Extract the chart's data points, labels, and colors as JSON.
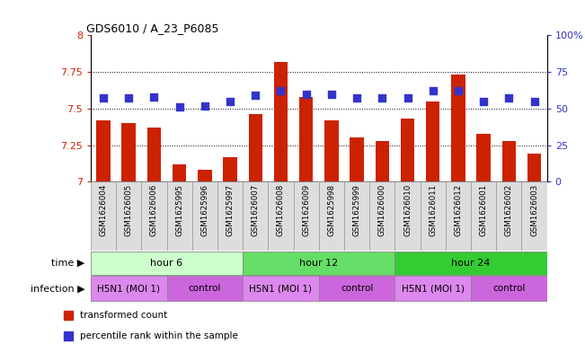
{
  "title": "GDS6010 / A_23_P6085",
  "samples": [
    "GSM1626004",
    "GSM1626005",
    "GSM1626006",
    "GSM1625995",
    "GSM1625996",
    "GSM1625997",
    "GSM1626007",
    "GSM1626008",
    "GSM1626009",
    "GSM1625998",
    "GSM1625999",
    "GSM1626000",
    "GSM1626010",
    "GSM1626011",
    "GSM1626012",
    "GSM1626001",
    "GSM1626002",
    "GSM1626003"
  ],
  "bar_values": [
    7.42,
    7.4,
    7.37,
    7.12,
    7.08,
    7.17,
    7.46,
    7.82,
    7.58,
    7.42,
    7.3,
    7.28,
    7.43,
    7.55,
    7.73,
    7.33,
    7.28,
    7.19
  ],
  "dot_values": [
    57,
    57,
    58,
    51,
    52,
    55,
    59,
    62,
    60,
    60,
    57,
    57,
    57,
    62,
    62,
    55,
    57,
    55
  ],
  "bar_color": "#cc2200",
  "dot_color": "#3333cc",
  "ylim_left": [
    7.0,
    8.0
  ],
  "ylim_right": [
    0,
    100
  ],
  "yticks_left": [
    7.0,
    7.25,
    7.5,
    7.75,
    8.0
  ],
  "ytick_labels_left": [
    "7",
    "7.25",
    "7.5",
    "7.75",
    "8"
  ],
  "yticks_right": [
    0,
    25,
    50,
    75,
    100
  ],
  "ytick_labels_right": [
    "0",
    "25",
    "50",
    "75",
    "100%"
  ],
  "grid_lines": [
    7.25,
    7.5,
    7.75
  ],
  "time_groups": [
    {
      "label": "hour 6",
      "start": 0,
      "end": 6,
      "color": "#ccffcc"
    },
    {
      "label": "hour 12",
      "start": 6,
      "end": 12,
      "color": "#66dd66"
    },
    {
      "label": "hour 24",
      "start": 12,
      "end": 18,
      "color": "#33cc33"
    }
  ],
  "infection_groups": [
    {
      "label": "H5N1 (MOI 1)",
      "start": 0,
      "end": 3,
      "color": "#dd88ee"
    },
    {
      "label": "control",
      "start": 3,
      "end": 6,
      "color": "#cc66dd"
    },
    {
      "label": "H5N1 (MOI 1)",
      "start": 6,
      "end": 9,
      "color": "#dd88ee"
    },
    {
      "label": "control",
      "start": 9,
      "end": 12,
      "color": "#cc66dd"
    },
    {
      "label": "H5N1 (MOI 1)",
      "start": 12,
      "end": 15,
      "color": "#dd88ee"
    },
    {
      "label": "control",
      "start": 15,
      "end": 18,
      "color": "#cc66dd"
    }
  ],
  "bar_width": 0.55,
  "background_color": "#ffffff",
  "time_label": "time",
  "infection_label": "infection",
  "legend_items": [
    {
      "label": "transformed count",
      "color": "#cc2200"
    },
    {
      "label": "percentile rank within the sample",
      "color": "#3333cc"
    }
  ]
}
